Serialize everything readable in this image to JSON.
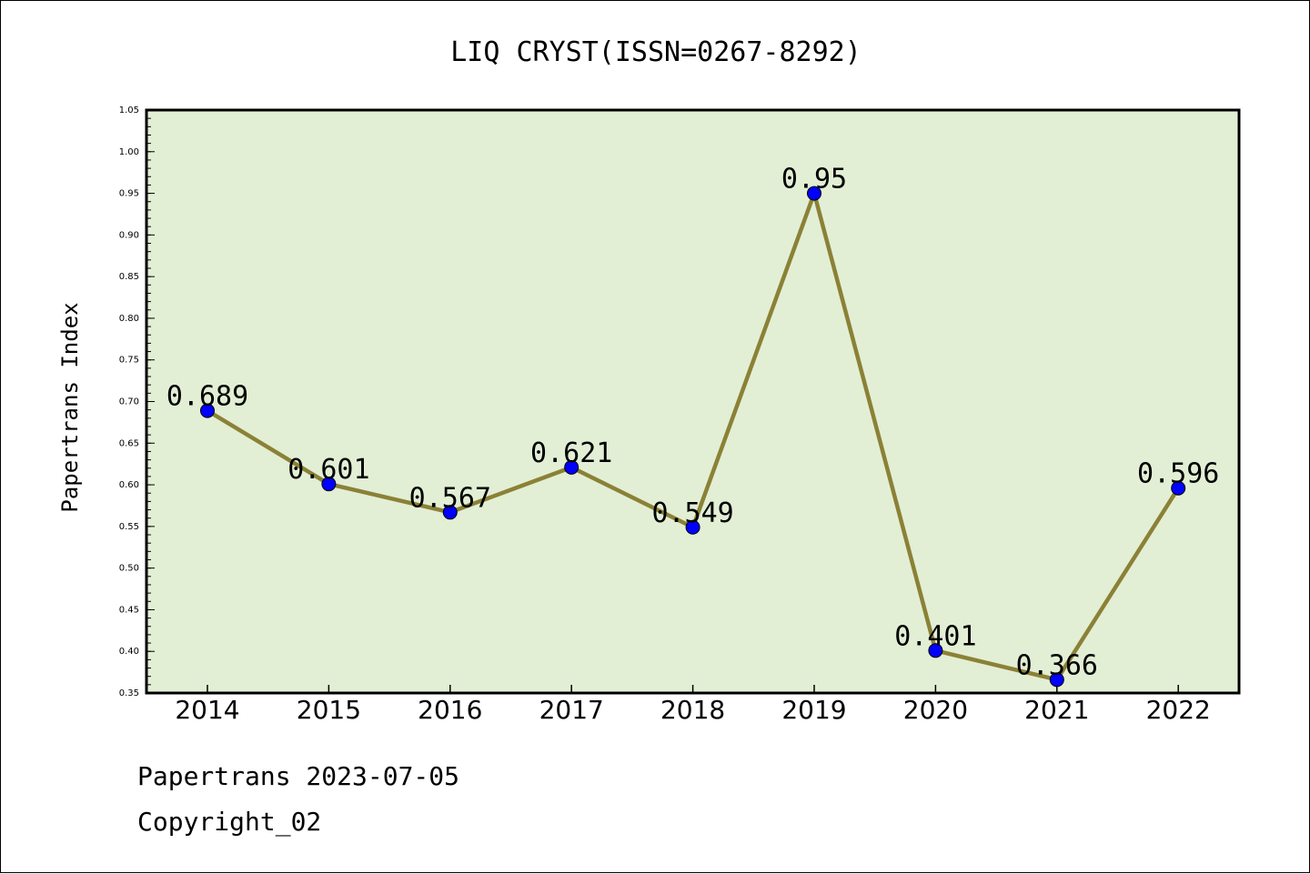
{
  "footer": {
    "line1": "Papertrans 2023-07-05",
    "line2": "Copyright_02"
  },
  "chart_data": {
    "type": "line",
    "title": "LIQ CRYST(ISSN=0267-8292)",
    "xlabel": "",
    "ylabel": "Papertrans Index",
    "categories": [
      "2014",
      "2015",
      "2016",
      "2017",
      "2018",
      "2019",
      "2020",
      "2021",
      "2022"
    ],
    "series": [
      {
        "values": [
          0.689,
          0.601,
          0.567,
          0.621,
          0.549,
          0.95,
          0.401,
          0.366,
          0.596
        ],
        "data_labels": [
          "0.689",
          "0.601",
          "0.567",
          "0.621",
          "0.549",
          "0.95",
          "0.401",
          "0.366",
          "0.596"
        ]
      }
    ],
    "ylim": [
      0.35,
      1.05
    ],
    "yticks": [
      "0.35",
      "0.40",
      "0.45",
      "0.50",
      "0.55",
      "0.60",
      "0.65",
      "0.70",
      "0.75",
      "0.80",
      "0.85",
      "0.90",
      "0.95",
      "1.00",
      "1.05"
    ],
    "grid": false,
    "legend": "none",
    "colors": {
      "plot_background": "#e2efd5",
      "line": "#8b8136",
      "marker": "#0000ff"
    }
  }
}
